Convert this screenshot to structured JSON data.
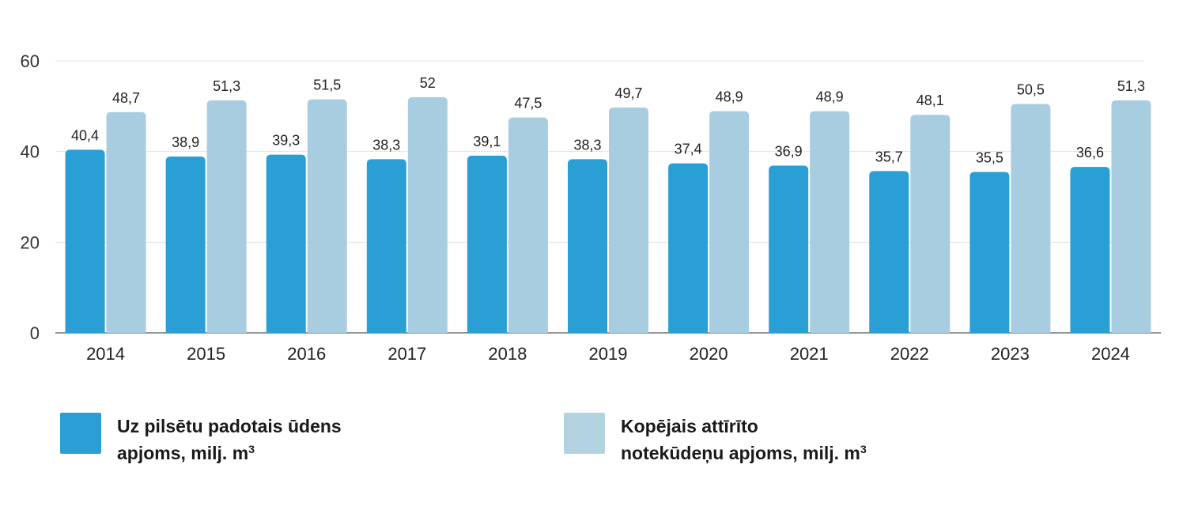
{
  "chart_data": {
    "type": "bar",
    "categories": [
      "2014",
      "2015",
      "2016",
      "2017",
      "2018",
      "2019",
      "2020",
      "2021",
      "2022",
      "2023",
      "2024"
    ],
    "series": [
      {
        "name": "Uz pilsētu padotais ūdens apjoms, milj. m3",
        "values": [
          40.4,
          38.9,
          39.3,
          38.3,
          39.1,
          38.3,
          37.4,
          36.9,
          35.7,
          35.5,
          36.6
        ],
        "labels": [
          "40,4",
          "38,9",
          "39,3",
          "38,3",
          "39,1",
          "38,3",
          "37,4",
          "36,9",
          "35,7",
          "35,5",
          "36,6"
        ],
        "color": "#2a9fd6"
      },
      {
        "name": "Kopējais attīrīto notekūdeņu apjoms, milj. m3",
        "values": [
          48.7,
          51.3,
          51.5,
          52,
          47.5,
          49.7,
          48.9,
          48.9,
          48.1,
          50.5,
          51.3
        ],
        "labels": [
          "48,7",
          "51,3",
          "51,5",
          "52",
          "47,5",
          "49,7",
          "48,9",
          "48,9",
          "48,1",
          "50,5",
          "51,3"
        ],
        "color": "#a9cde0"
      }
    ],
    "ylim": [
      0,
      60
    ],
    "yticks": [
      0,
      20,
      40,
      60
    ],
    "ytick_labels": [
      "0",
      "20",
      "40",
      "60"
    ],
    "grid": true,
    "legend_position": "bottom"
  },
  "legend": [
    {
      "line1": "Uz pilsētu padotais ūdens",
      "line2": "apjoms, milj. m",
      "sup": "3",
      "color": "#2a9fd6"
    },
    {
      "line1": "Kopējais attīrīto",
      "line2": "notekūdeņu apjoms,  milj. m",
      "sup": "3",
      "color": "#b3d3e0"
    }
  ]
}
